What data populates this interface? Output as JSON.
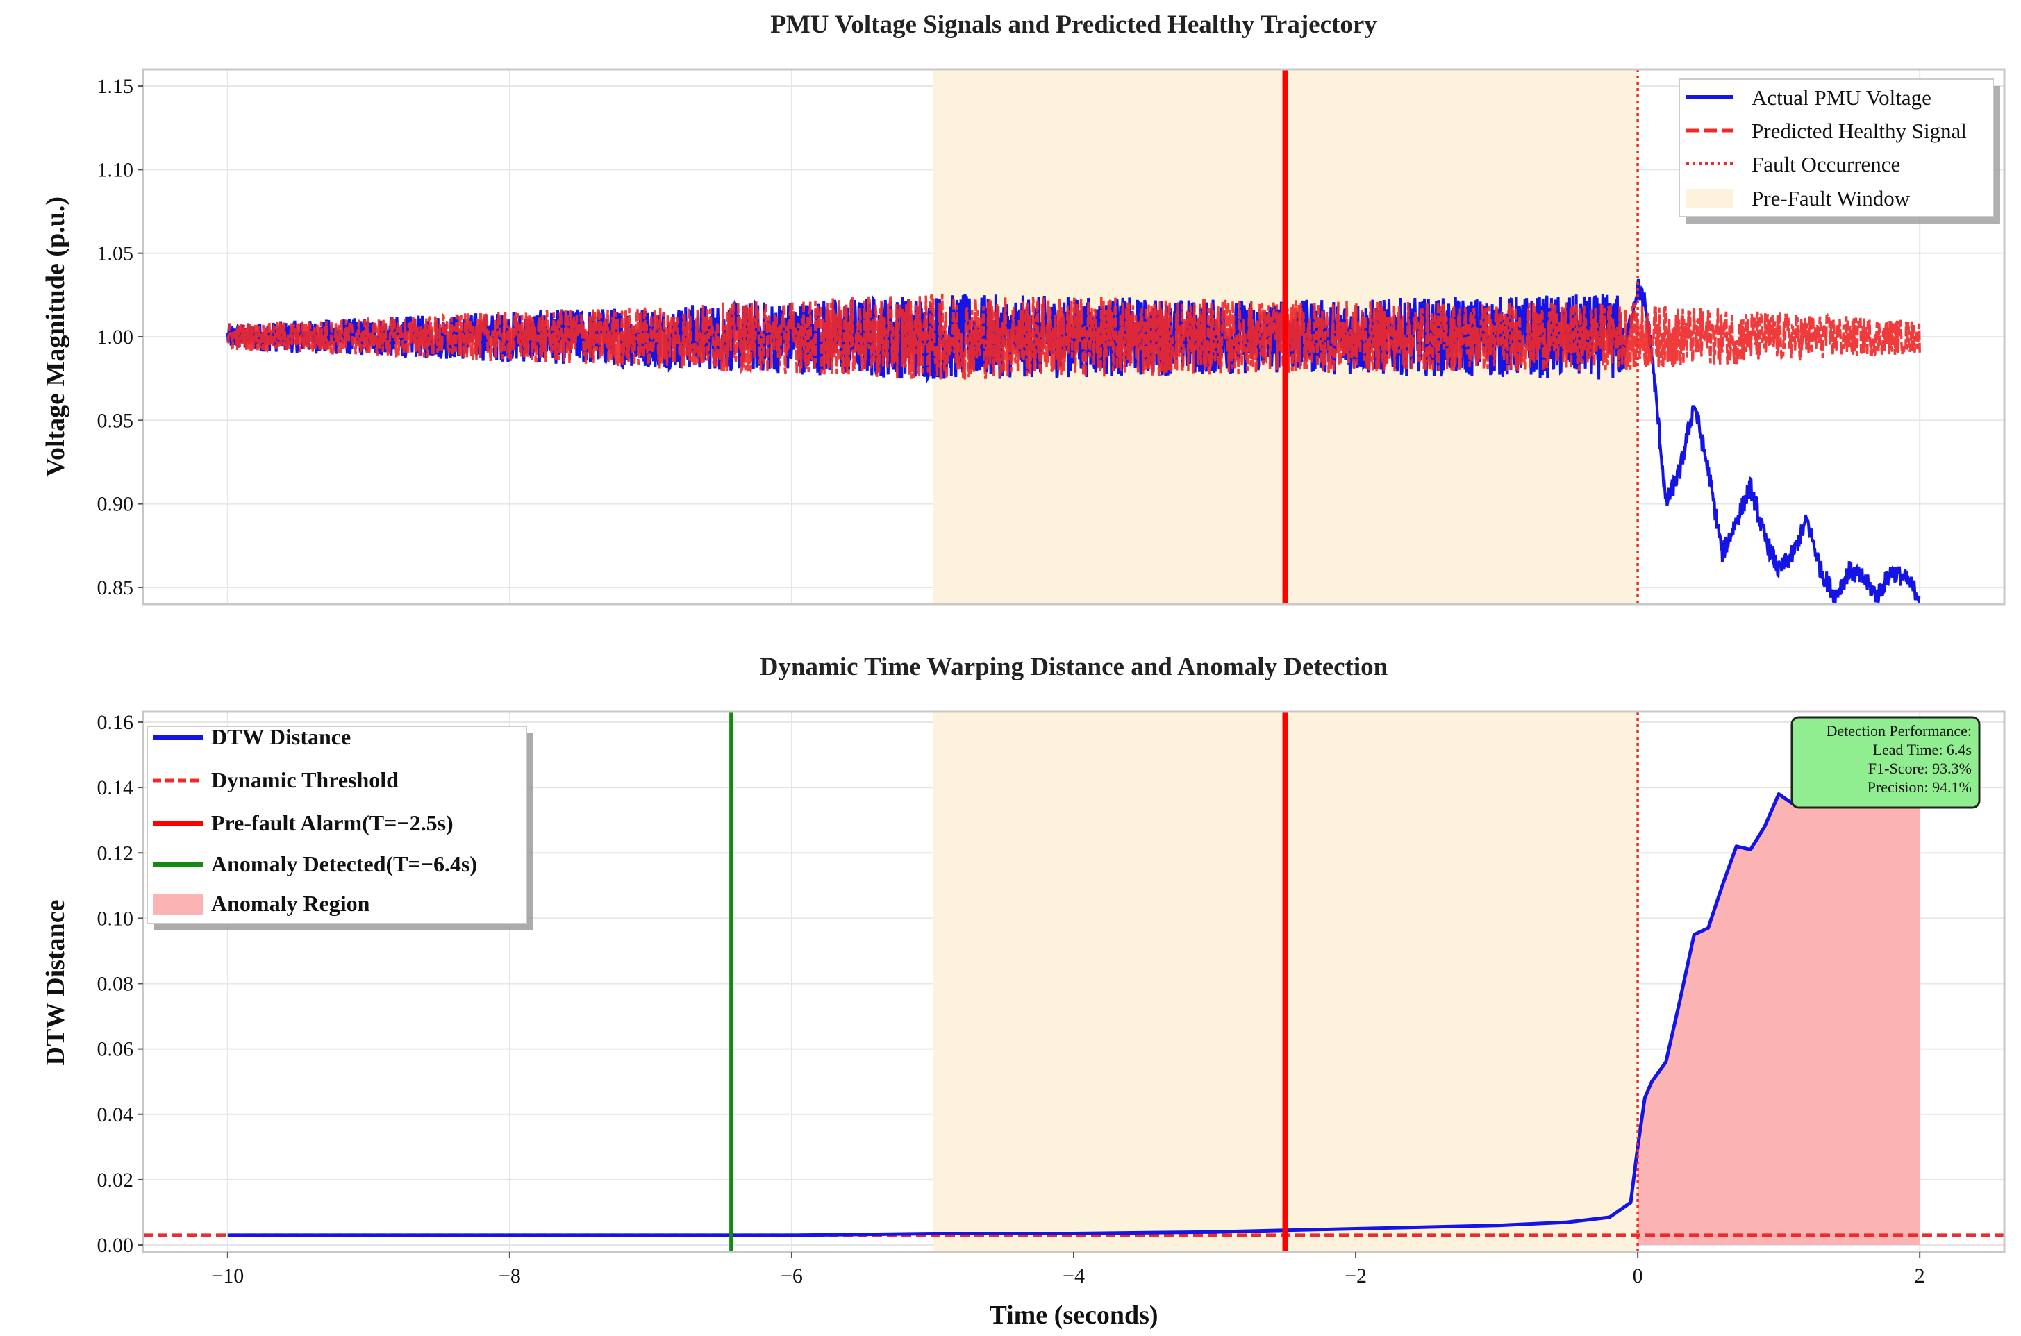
{
  "chart_data": [
    {
      "type": "line",
      "title": "PMU Voltage Signals and Predicted Healthy Trajectory",
      "xlabel": "",
      "ylabel": "Voltage Magnitude (p.u.)",
      "xlim": [
        -10.6,
        2.6
      ],
      "ylim": [
        0.84,
        1.16
      ],
      "y_ticks": [
        "0.85",
        "0.90",
        "0.95",
        "1.00",
        "1.05",
        "1.10",
        "1.15"
      ],
      "x_ticks": [
        -10,
        -8,
        -6,
        -4,
        -2,
        0,
        2
      ],
      "grid": true,
      "legend_position": "top-right",
      "legend": [
        {
          "label": "Actual PMU Voltage",
          "style": "solid",
          "color": "#1414e6"
        },
        {
          "label": "Predicted Healthy Signal",
          "style": "dashed",
          "color": "#ee2a2a"
        },
        {
          "label": "Fault Occurrence",
          "style": "dotted",
          "color": "#ee2a2a"
        },
        {
          "label": "Pre-Fault Window",
          "style": "patch",
          "color": "#fdf3dd"
        }
      ],
      "pre_fault_window": [
        -5.0,
        0.0
      ],
      "alarm_line_x": -2.5,
      "fault_line_x": 0.0,
      "series": [
        {
          "name": "Actual PMU Voltage",
          "color": "#1414e6",
          "noise_band": {
            "x": [
              -10,
              -5,
              -2.5,
              -0.1
            ],
            "amplitude": [
              0.008,
              0.026,
              0.022,
              0.026
            ],
            "center": 1.0
          },
          "x": [
            -0.1,
            0.0,
            0.05,
            0.1,
            0.2,
            0.3,
            0.4,
            0.5,
            0.6,
            0.7,
            0.8,
            0.9,
            1.0,
            1.1,
            1.2,
            1.3,
            1.4,
            1.5,
            1.6,
            1.7,
            1.8,
            1.9,
            2.0
          ],
          "y": [
            0.99,
            1.03,
            1.02,
            0.99,
            0.9,
            0.92,
            0.96,
            0.92,
            0.87,
            0.89,
            0.91,
            0.88,
            0.86,
            0.87,
            0.89,
            0.86,
            0.845,
            0.86,
            0.855,
            0.845,
            0.86,
            0.855,
            0.845
          ]
        },
        {
          "name": "Predicted Healthy Signal",
          "color": "#ee2a2a",
          "noise_band": {
            "x": [
              -10,
              -5,
              -2.5,
              0,
              2
            ],
            "amplitude": [
              0.008,
              0.026,
              0.022,
              0.02,
              0.01
            ],
            "center": 1.0
          }
        }
      ]
    },
    {
      "type": "area",
      "title": "Dynamic Time Warping Distance and Anomaly Detection",
      "xlabel": "Time (seconds)",
      "ylabel": "DTW Distance",
      "xlim": [
        -10.6,
        2.6
      ],
      "ylim": [
        0.0,
        0.16
      ],
      "y_ticks": [
        "0.00",
        "0.02",
        "0.04",
        "0.06",
        "0.08",
        "0.10",
        "0.12",
        "0.14",
        "0.16"
      ],
      "x_ticks": [
        "−10",
        "−8",
        "−6",
        "−4",
        "−2",
        "0",
        "2"
      ],
      "grid": true,
      "legend_position": "top-left",
      "legend": [
        {
          "label": "DTW Distance",
          "style": "solid",
          "color": "#1414e6"
        },
        {
          "label": "Dynamic Threshold",
          "style": "dashed",
          "color": "#ee2a2a"
        },
        {
          "label": "Pre-fault Alarm(T=−2.5s)",
          "style": "solid-thick",
          "color": "#ff0000"
        },
        {
          "label": "Anomaly Detected(T=−6.4s)",
          "style": "solid-thick",
          "color": "#138a13"
        },
        {
          "label": "Anomaly Region",
          "style": "patch",
          "color": "#fcb3b3"
        }
      ],
      "pre_fault_window": [
        -5.0,
        0.0
      ],
      "alarm_line_x": -2.5,
      "anomaly_line_x": -6.43,
      "fault_line_x": 0.0,
      "threshold": 0.003,
      "anomaly_region": [
        0.0,
        2.0
      ],
      "series": [
        {
          "name": "DTW Distance",
          "color": "#1414e6",
          "x": [
            -10,
            -8,
            -6,
            -5,
            -4,
            -3,
            -2.5,
            -2,
            -1.5,
            -1,
            -0.5,
            -0.2,
            -0.05,
            0.0,
            0.05,
            0.1,
            0.2,
            0.3,
            0.4,
            0.5,
            0.6,
            0.7,
            0.8,
            0.9,
            1.0,
            1.1,
            1.2,
            1.3,
            1.4,
            1.5,
            1.6,
            1.7,
            1.8,
            1.9,
            2.0
          ],
          "y": [
            0.003,
            0.003,
            0.003,
            0.0035,
            0.0035,
            0.004,
            0.0045,
            0.005,
            0.0055,
            0.006,
            0.007,
            0.0085,
            0.013,
            0.03,
            0.045,
            0.05,
            0.056,
            0.075,
            0.095,
            0.097,
            0.11,
            0.122,
            0.121,
            0.128,
            0.138,
            0.135,
            0.137,
            0.139,
            0.141,
            0.144,
            0.145,
            0.146,
            0.147,
            0.148,
            0.148
          ]
        }
      ],
      "performance_box": {
        "lines": [
          "Detection Performance:",
          "Lead Time: 6.4s",
          "F1-Score: 93.3%",
          "Precision: 94.1%"
        ],
        "background": "#90ee90"
      }
    }
  ]
}
